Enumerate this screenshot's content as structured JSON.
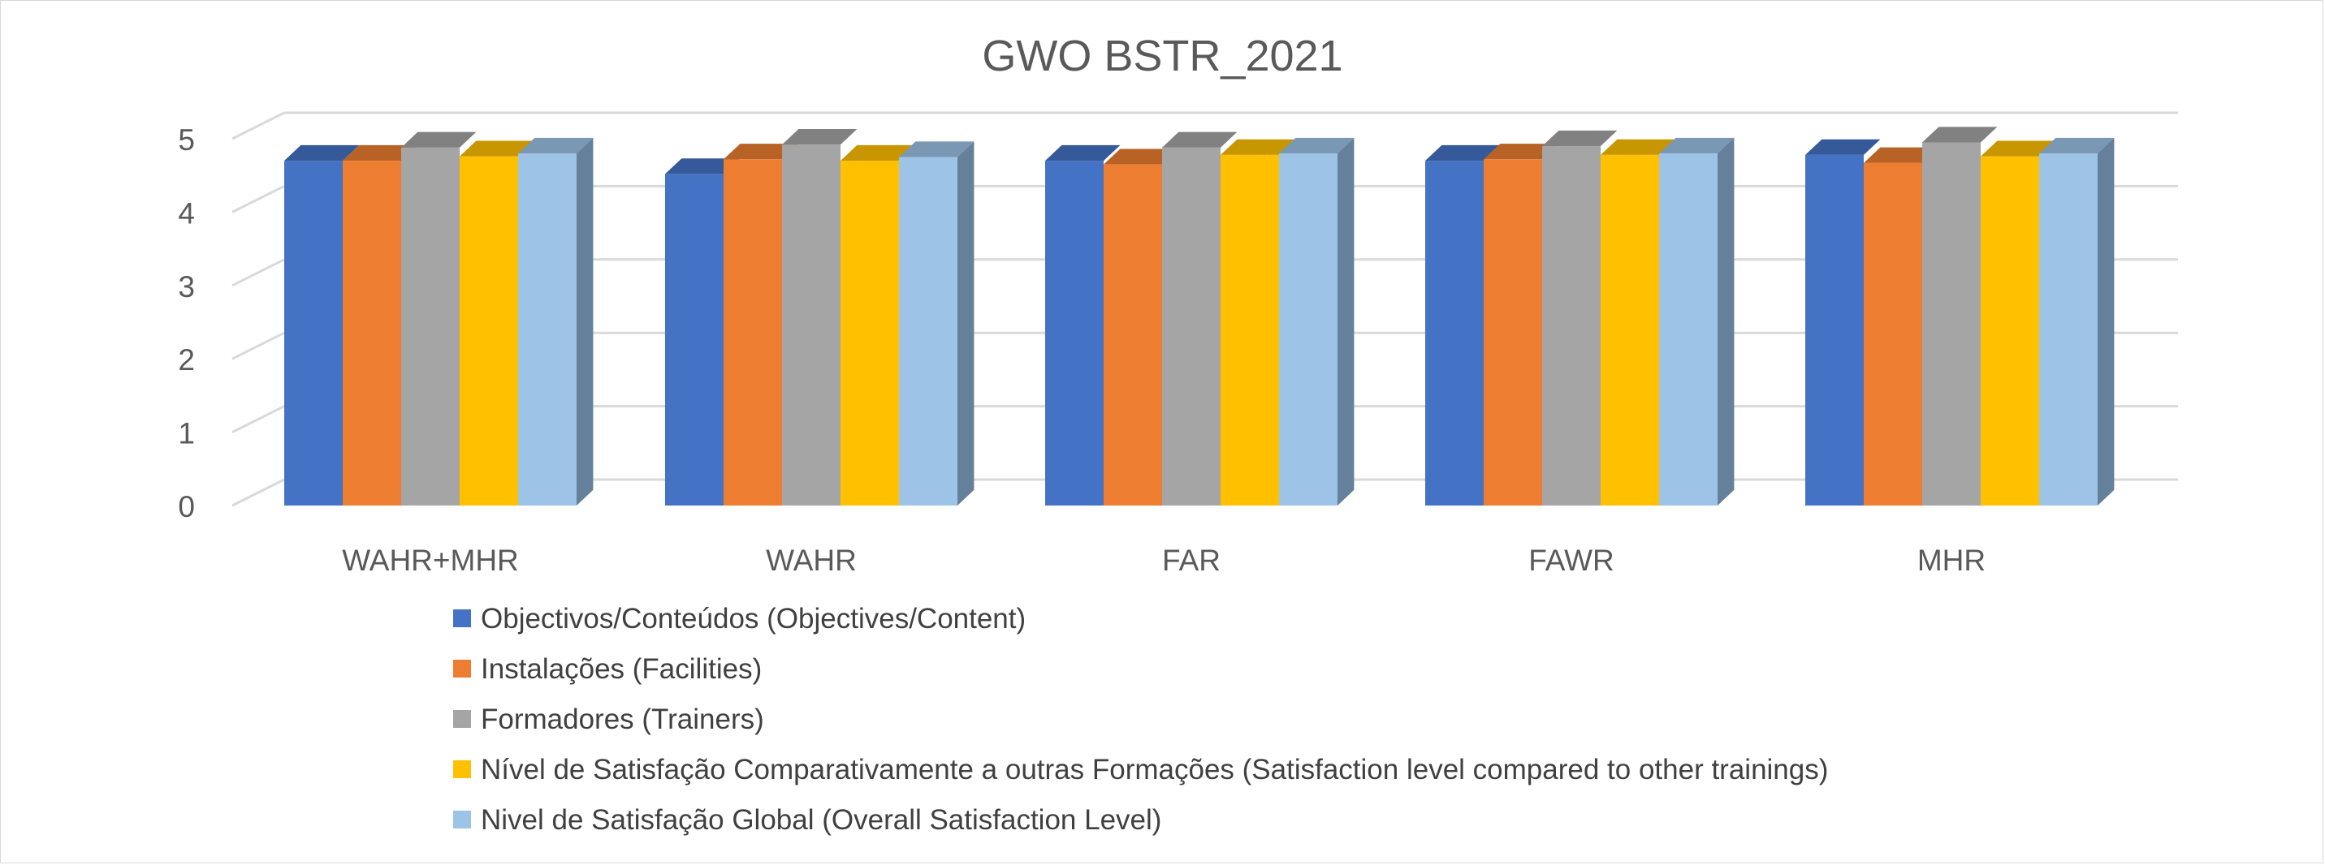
{
  "chart_data": {
    "type": "bar",
    "title": "GWO BSTR_2021",
    "categories": [
      "WAHR+MHR",
      "WAHR",
      "FAR",
      "FAWR",
      "MHR"
    ],
    "ylim": [
      0,
      5
    ],
    "yticks": [
      "0",
      "1",
      "2",
      "3",
      "4",
      "5"
    ],
    "grid": true,
    "legend_position": "bottom",
    "series": [
      {
        "name": "Objectivos/Conteúdos (Objectives/Content)",
        "color": "#4472C4",
        "values": [
          4.7,
          4.52,
          4.7,
          4.7,
          4.78
        ]
      },
      {
        "name": "Instalações (Facilities)",
        "color": "#ED7D31",
        "values": [
          4.7,
          4.72,
          4.65,
          4.72,
          4.67
        ]
      },
      {
        "name": "Formadores (Trainers)",
        "color": "#A5A5A5",
        "values": [
          4.88,
          4.92,
          4.88,
          4.9,
          4.95
        ]
      },
      {
        "name": "Nível de Satisfação Comparativamente a outras Formações (Satisfaction level compared to other trainings)",
        "color": "#FFC000",
        "values": [
          4.76,
          4.7,
          4.78,
          4.78,
          4.76
        ]
      },
      {
        "name": "Nivel de Satisfação Global (Overall Satisfaction Level)",
        "color": "#9DC3E6",
        "values": [
          4.8,
          4.75,
          4.8,
          4.8,
          4.8
        ]
      }
    ]
  }
}
